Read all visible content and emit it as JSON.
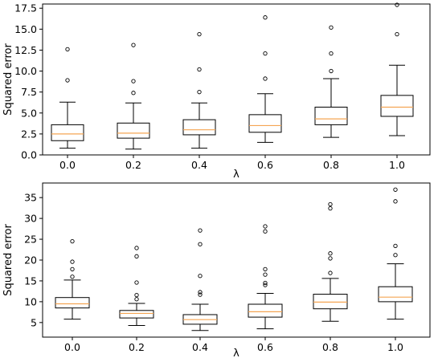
{
  "chart_data": [
    {
      "type": "box",
      "xlabel": "λ",
      "ylabel": "Squared error",
      "categories": [
        "0.0",
        "0.2",
        "0.4",
        "0.6",
        "0.8",
        "1.0"
      ],
      "yticks": [
        "0.0",
        "2.5",
        "5.0",
        "7.5",
        "10.0",
        "12.5",
        "15.0",
        "17.5"
      ],
      "ylim": [
        0,
        18
      ],
      "grid": false,
      "median_color": "#f5a553",
      "boxes": [
        {
          "whislo": 0.8,
          "q1": 1.7,
          "med": 2.5,
          "q3": 3.6,
          "whishi": 6.3,
          "fliers": [
            8.9,
            12.6
          ]
        },
        {
          "whislo": 0.7,
          "q1": 2.0,
          "med": 2.6,
          "q3": 3.8,
          "whishi": 6.2,
          "fliers": [
            7.4,
            8.8,
            13.1
          ]
        },
        {
          "whislo": 0.8,
          "q1": 2.4,
          "med": 3.0,
          "q3": 4.2,
          "whishi": 6.2,
          "fliers": [
            7.5,
            10.2,
            14.4
          ]
        },
        {
          "whislo": 1.5,
          "q1": 2.7,
          "med": 3.5,
          "q3": 4.8,
          "whishi": 7.3,
          "fliers": [
            9.1,
            12.1,
            16.4
          ]
        },
        {
          "whislo": 2.1,
          "q1": 3.6,
          "med": 4.3,
          "q3": 5.7,
          "whishi": 9.1,
          "fliers": [
            10.0,
            12.1,
            15.2
          ]
        },
        {
          "whislo": 2.3,
          "q1": 4.6,
          "med": 5.7,
          "q3": 7.1,
          "whishi": 10.7,
          "fliers": [
            14.4,
            17.9
          ]
        }
      ]
    },
    {
      "type": "box",
      "xlabel": "λ",
      "ylabel": "Squared error",
      "categories": [
        "0.0",
        "0.2",
        "0.4",
        "0.6",
        "0.8",
        "1.0"
      ],
      "yticks": [
        "5",
        "10",
        "15",
        "20",
        "25",
        "30",
        "35"
      ],
      "ylim": [
        1.5,
        38.5
      ],
      "grid": false,
      "median_color": "#f5a553",
      "boxes": [
        {
          "whislo": 5.8,
          "q1": 8.5,
          "med": 9.5,
          "q3": 11.0,
          "whishi": 15.2,
          "fliers": [
            16.0,
            17.8,
            19.6,
            24.5
          ]
        },
        {
          "whislo": 4.3,
          "q1": 6.1,
          "med": 7.2,
          "q3": 7.9,
          "whishi": 9.6,
          "fliers": [
            10.6,
            11.6,
            14.6,
            20.9,
            22.9
          ]
        },
        {
          "whislo": 3.1,
          "q1": 4.6,
          "med": 5.7,
          "q3": 6.9,
          "whishi": 9.4,
          "fliers": [
            11.7,
            12.3,
            16.2,
            23.8,
            27.1
          ]
        },
        {
          "whislo": 3.5,
          "q1": 6.3,
          "med": 7.6,
          "q3": 9.4,
          "whishi": 12.0,
          "fliers": [
            14.0,
            14.5,
            16.5,
            17.8,
            26.9,
            28.1
          ]
        },
        {
          "whislo": 5.3,
          "q1": 8.3,
          "med": 9.9,
          "q3": 11.8,
          "whishi": 15.6,
          "fliers": [
            16.9,
            20.4,
            21.6,
            32.4,
            33.4
          ]
        },
        {
          "whislo": 5.8,
          "q1": 10.0,
          "med": 11.1,
          "q3": 13.6,
          "whishi": 19.1,
          "fliers": [
            21.2,
            23.4,
            34.1,
            36.9
          ]
        }
      ]
    }
  ]
}
